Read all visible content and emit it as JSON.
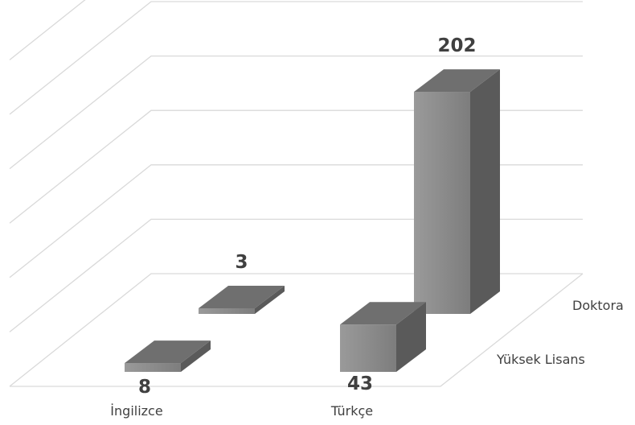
{
  "chart_data": {
    "type": "bar",
    "subtype": "3d-column",
    "categories": [
      "İngilizce",
      "Türkçe"
    ],
    "depth_categories": [
      "Yüksek Lisans",
      "Doktora"
    ],
    "series": [
      {
        "name": "Yüksek Lisans",
        "values": [
          8,
          43
        ]
      },
      {
        "name": "Doktora",
        "values": [
          3,
          202
        ]
      }
    ],
    "data_labels": true,
    "gridlines": true,
    "legend": "none",
    "colors": {
      "bar_front": "#8f8f8f",
      "bar_side": "#5a5a5a",
      "bar_top": "#6f6f6f",
      "grid": "#d9d9d9",
      "text": "#404040"
    }
  }
}
